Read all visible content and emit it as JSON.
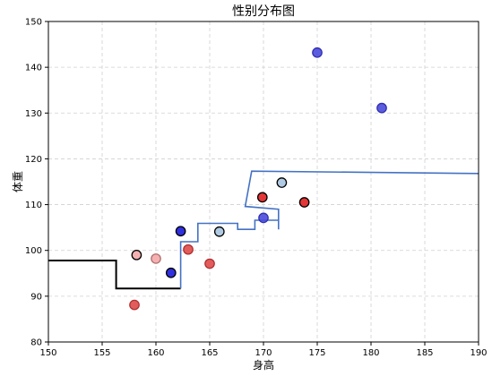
{
  "chart_data": {
    "type": "scatter",
    "title": "性别分布图",
    "xlabel": "身高",
    "ylabel": "体重",
    "xlim": [
      150,
      190
    ],
    "ylim": [
      80,
      150
    ],
    "xticks": [
      150,
      155,
      160,
      165,
      170,
      175,
      180,
      185,
      190
    ],
    "yticks": [
      80,
      90,
      100,
      110,
      120,
      130,
      140,
      150
    ],
    "grid": true,
    "points": [
      {
        "x": 158.0,
        "y": 88.1,
        "color": "#e04a4a",
        "edge": "#b03030"
      },
      {
        "x": 158.2,
        "y": 99.0,
        "color": "#f4a8a8",
        "edge": "#000000"
      },
      {
        "x": 160.0,
        "y": 98.2,
        "color": "#f4a8a8",
        "edge": "#b07070"
      },
      {
        "x": 161.4,
        "y": 95.1,
        "color": "#1a1adc",
        "edge": "#000000"
      },
      {
        "x": 162.3,
        "y": 104.2,
        "color": "#1a1adc",
        "edge": "#000000"
      },
      {
        "x": 163.0,
        "y": 100.2,
        "color": "#e04a4a",
        "edge": "#b03030"
      },
      {
        "x": 165.0,
        "y": 97.1,
        "color": "#e04a4a",
        "edge": "#b03030"
      },
      {
        "x": 165.9,
        "y": 104.1,
        "color": "#a9c4e0",
        "edge": "#000000"
      },
      {
        "x": 169.9,
        "y": 111.6,
        "color": "#e02020",
        "edge": "#000000"
      },
      {
        "x": 170.0,
        "y": 107.1,
        "color": "#4a4adc",
        "edge": "#3030b0"
      },
      {
        "x": 171.7,
        "y": 114.8,
        "color": "#a9c4e0",
        "edge": "#000000"
      },
      {
        "x": 173.8,
        "y": 110.5,
        "color": "#e02020",
        "edge": "#000000"
      },
      {
        "x": 175.0,
        "y": 143.2,
        "color": "#4a4adc",
        "edge": "#3030b0"
      },
      {
        "x": 181.0,
        "y": 131.1,
        "color": "#4a4adc",
        "edge": "#3030b0"
      }
    ],
    "boundary_lines": [
      {
        "color": "#000000",
        "points": [
          [
            150,
            97.8
          ],
          [
            156.3,
            97.8
          ],
          [
            156.3,
            91.7
          ],
          [
            162.3,
            91.7
          ]
        ]
      },
      {
        "color": "#4472c4",
        "points": [
          [
            162.3,
            91.7
          ],
          [
            162.3,
            101.9
          ],
          [
            163.9,
            101.9
          ],
          [
            163.9,
            105.9
          ],
          [
            167.6,
            105.9
          ],
          [
            167.6,
            104.6
          ],
          [
            169.2,
            104.6
          ],
          [
            169.2,
            106.6
          ],
          [
            171.4,
            106.6
          ],
          [
            171.4,
            104.6
          ],
          [
            171.4,
            109.0
          ],
          [
            168.3,
            109.6
          ],
          [
            168.9,
            117.3
          ],
          [
            190,
            116.8
          ]
        ]
      }
    ]
  }
}
